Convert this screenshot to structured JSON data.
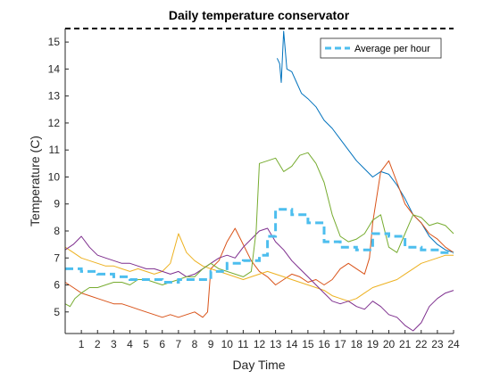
{
  "chart_data": {
    "type": "line",
    "title": "Daily temperature conservator",
    "xlabel": "Day Time",
    "ylabel": "Temperature (C)",
    "xlim": [
      0,
      24
    ],
    "ylim": [
      4.2,
      15.5
    ],
    "xticks": [
      1,
      2,
      3,
      4,
      5,
      6,
      7,
      8,
      9,
      10,
      11,
      12,
      13,
      14,
      15,
      16,
      17,
      18,
      19,
      20,
      21,
      22,
      23,
      24
    ],
    "yticks": [
      5,
      6,
      7,
      8,
      9,
      10,
      11,
      12,
      13,
      14,
      15
    ],
    "grid": false,
    "legend": {
      "placement": "top-right",
      "entries": [
        "Average per hour"
      ]
    },
    "reference_line": {
      "y": 15.5,
      "style": "dashed",
      "color": "#000000"
    },
    "series": [
      {
        "color": "#0072BD",
        "points": [
          [
            13.1,
            14.4
          ],
          [
            13.25,
            14.2
          ],
          [
            13.35,
            13.5
          ],
          [
            13.5,
            15.4
          ],
          [
            13.7,
            14.0
          ],
          [
            14.0,
            13.9
          ],
          [
            14.3,
            13.5
          ],
          [
            14.6,
            13.1
          ],
          [
            15.0,
            12.9
          ],
          [
            15.5,
            12.6
          ],
          [
            16.0,
            12.1
          ],
          [
            16.5,
            11.8
          ],
          [
            17.0,
            11.4
          ],
          [
            17.5,
            11.0
          ],
          [
            18.0,
            10.6
          ],
          [
            18.5,
            10.3
          ],
          [
            19.0,
            10.0
          ],
          [
            19.5,
            10.2
          ],
          [
            20.0,
            10.1
          ],
          [
            20.5,
            9.7
          ],
          [
            21.0,
            9.2
          ],
          [
            21.5,
            8.6
          ],
          [
            22.0,
            8.3
          ],
          [
            22.5,
            7.8
          ],
          [
            23.0,
            7.5
          ],
          [
            23.5,
            7.3
          ],
          [
            24.0,
            7.2
          ]
        ]
      },
      {
        "color": "#D95319",
        "points": [
          [
            0.0,
            6.1
          ],
          [
            0.5,
            5.9
          ],
          [
            1.0,
            5.7
          ],
          [
            1.5,
            5.6
          ],
          [
            2.0,
            5.5
          ],
          [
            2.5,
            5.4
          ],
          [
            3.0,
            5.3
          ],
          [
            3.5,
            5.3
          ],
          [
            4.0,
            5.2
          ],
          [
            4.5,
            5.1
          ],
          [
            5.0,
            5.0
          ],
          [
            5.5,
            4.9
          ],
          [
            6.0,
            4.8
          ],
          [
            6.5,
            4.9
          ],
          [
            7.0,
            4.8
          ],
          [
            7.5,
            4.9
          ],
          [
            8.0,
            5.0
          ],
          [
            8.5,
            4.8
          ],
          [
            8.8,
            5.0
          ],
          [
            9.0,
            6.6
          ],
          [
            9.5,
            6.9
          ],
          [
            10.0,
            7.6
          ],
          [
            10.5,
            8.1
          ],
          [
            11.0,
            7.5
          ],
          [
            11.5,
            6.9
          ],
          [
            12.0,
            6.5
          ],
          [
            12.5,
            6.3
          ],
          [
            13.0,
            6.0
          ],
          [
            13.5,
            6.2
          ],
          [
            14.0,
            6.4
          ],
          [
            14.5,
            6.3
          ],
          [
            15.0,
            6.1
          ],
          [
            15.5,
            6.2
          ],
          [
            16.0,
            6.0
          ],
          [
            16.5,
            6.2
          ],
          [
            17.0,
            6.6
          ],
          [
            17.5,
            6.8
          ],
          [
            18.0,
            6.6
          ],
          [
            18.5,
            6.4
          ],
          [
            18.8,
            7.0
          ],
          [
            19.0,
            8.3
          ],
          [
            19.5,
            10.2
          ],
          [
            20.0,
            10.6
          ],
          [
            20.5,
            9.8
          ],
          [
            21.0,
            9.0
          ],
          [
            21.5,
            8.6
          ],
          [
            22.0,
            8.3
          ],
          [
            22.5,
            7.9
          ],
          [
            23.0,
            7.7
          ],
          [
            23.5,
            7.4
          ],
          [
            24.0,
            7.2
          ]
        ]
      },
      {
        "color": "#EDB120",
        "points": [
          [
            0.0,
            7.4
          ],
          [
            0.5,
            7.2
          ],
          [
            1.0,
            7.0
          ],
          [
            1.5,
            6.9
          ],
          [
            2.0,
            6.8
          ],
          [
            2.5,
            6.7
          ],
          [
            3.0,
            6.7
          ],
          [
            3.5,
            6.6
          ],
          [
            4.0,
            6.5
          ],
          [
            4.5,
            6.6
          ],
          [
            5.0,
            6.5
          ],
          [
            5.5,
            6.4
          ],
          [
            6.0,
            6.5
          ],
          [
            6.5,
            6.8
          ],
          [
            7.0,
            7.9
          ],
          [
            7.5,
            7.2
          ],
          [
            8.0,
            6.9
          ],
          [
            8.5,
            6.7
          ],
          [
            9.0,
            6.6
          ],
          [
            9.5,
            6.5
          ],
          [
            10.0,
            6.4
          ],
          [
            10.5,
            6.3
          ],
          [
            11.0,
            6.2
          ],
          [
            11.5,
            6.3
          ],
          [
            12.0,
            6.4
          ],
          [
            12.5,
            6.5
          ],
          [
            13.0,
            6.4
          ],
          [
            13.5,
            6.3
          ],
          [
            14.0,
            6.2
          ],
          [
            14.5,
            6.1
          ],
          [
            15.0,
            6.0
          ],
          [
            15.5,
            5.9
          ],
          [
            16.0,
            5.8
          ],
          [
            16.5,
            5.6
          ],
          [
            17.0,
            5.5
          ],
          [
            17.5,
            5.4
          ],
          [
            18.0,
            5.5
          ],
          [
            18.5,
            5.7
          ],
          [
            19.0,
            5.9
          ],
          [
            19.5,
            6.0
          ],
          [
            20.0,
            6.1
          ],
          [
            20.5,
            6.2
          ],
          [
            21.0,
            6.4
          ],
          [
            21.5,
            6.6
          ],
          [
            22.0,
            6.8
          ],
          [
            22.5,
            6.9
          ],
          [
            23.0,
            7.0
          ],
          [
            23.5,
            7.1
          ],
          [
            24.0,
            7.1
          ]
        ]
      },
      {
        "color": "#7E2F8E",
        "points": [
          [
            0.0,
            7.3
          ],
          [
            0.5,
            7.5
          ],
          [
            1.0,
            7.8
          ],
          [
            1.5,
            7.4
          ],
          [
            2.0,
            7.1
          ],
          [
            2.5,
            7.0
          ],
          [
            3.0,
            6.9
          ],
          [
            3.5,
            6.8
          ],
          [
            4.0,
            6.8
          ],
          [
            4.5,
            6.7
          ],
          [
            5.0,
            6.6
          ],
          [
            5.5,
            6.6
          ],
          [
            6.0,
            6.5
          ],
          [
            6.5,
            6.4
          ],
          [
            7.0,
            6.5
          ],
          [
            7.5,
            6.3
          ],
          [
            8.0,
            6.4
          ],
          [
            8.5,
            6.6
          ],
          [
            9.0,
            6.8
          ],
          [
            9.5,
            7.0
          ],
          [
            10.0,
            7.1
          ],
          [
            10.5,
            7.0
          ],
          [
            11.0,
            7.4
          ],
          [
            11.5,
            7.7
          ],
          [
            12.0,
            8.0
          ],
          [
            12.5,
            8.1
          ],
          [
            13.0,
            7.6
          ],
          [
            13.5,
            7.3
          ],
          [
            14.0,
            6.9
          ],
          [
            14.5,
            6.6
          ],
          [
            15.0,
            6.3
          ],
          [
            15.5,
            6.0
          ],
          [
            16.0,
            5.7
          ],
          [
            16.5,
            5.4
          ],
          [
            17.0,
            5.3
          ],
          [
            17.5,
            5.4
          ],
          [
            18.0,
            5.2
          ],
          [
            18.5,
            5.1
          ],
          [
            19.0,
            5.4
          ],
          [
            19.5,
            5.2
          ],
          [
            20.0,
            4.9
          ],
          [
            20.5,
            4.8
          ],
          [
            21.0,
            4.5
          ],
          [
            21.5,
            4.3
          ],
          [
            22.0,
            4.6
          ],
          [
            22.5,
            5.2
          ],
          [
            23.0,
            5.5
          ],
          [
            23.5,
            5.7
          ],
          [
            24.0,
            5.8
          ]
        ]
      },
      {
        "color": "#77AC30",
        "points": [
          [
            0.0,
            5.3
          ],
          [
            0.3,
            5.2
          ],
          [
            0.6,
            5.5
          ],
          [
            1.0,
            5.7
          ],
          [
            1.5,
            5.9
          ],
          [
            2.0,
            5.9
          ],
          [
            2.5,
            6.0
          ],
          [
            3.0,
            6.1
          ],
          [
            3.5,
            6.1
          ],
          [
            4.0,
            6.0
          ],
          [
            4.5,
            6.2
          ],
          [
            5.0,
            6.2
          ],
          [
            5.5,
            6.1
          ],
          [
            6.0,
            6.0
          ],
          [
            6.5,
            6.1
          ],
          [
            7.0,
            6.2
          ],
          [
            7.5,
            6.3
          ],
          [
            8.0,
            6.3
          ],
          [
            8.5,
            6.6
          ],
          [
            9.0,
            6.8
          ],
          [
            9.5,
            6.6
          ],
          [
            10.0,
            6.5
          ],
          [
            10.5,
            6.4
          ],
          [
            11.0,
            6.3
          ],
          [
            11.5,
            6.5
          ],
          [
            11.8,
            8.0
          ],
          [
            12.0,
            10.5
          ],
          [
            12.5,
            10.6
          ],
          [
            13.0,
            10.7
          ],
          [
            13.5,
            10.2
          ],
          [
            14.0,
            10.4
          ],
          [
            14.5,
            10.8
          ],
          [
            15.0,
            10.9
          ],
          [
            15.5,
            10.5
          ],
          [
            16.0,
            9.8
          ],
          [
            16.5,
            8.6
          ],
          [
            17.0,
            7.8
          ],
          [
            17.5,
            7.6
          ],
          [
            18.0,
            7.7
          ],
          [
            18.5,
            7.9
          ],
          [
            19.0,
            8.4
          ],
          [
            19.5,
            8.6
          ],
          [
            20.0,
            7.4
          ],
          [
            20.5,
            7.2
          ],
          [
            21.0,
            7.9
          ],
          [
            21.5,
            8.6
          ],
          [
            22.0,
            8.5
          ],
          [
            22.5,
            8.2
          ],
          [
            23.0,
            8.3
          ],
          [
            23.5,
            8.2
          ],
          [
            24.0,
            7.9
          ]
        ]
      }
    ],
    "average": {
      "name": "Average per hour",
      "color": "#4DBEEE",
      "style": "dashed",
      "points": [
        [
          0,
          6.6
        ],
        [
          1,
          6.5
        ],
        [
          2,
          6.4
        ],
        [
          3,
          6.3
        ],
        [
          4,
          6.2
        ],
        [
          5,
          6.2
        ],
        [
          6,
          6.1
        ],
        [
          7,
          6.2
        ],
        [
          8,
          6.2
        ],
        [
          9,
          6.5
        ],
        [
          10,
          6.8
        ],
        [
          11,
          6.9
        ],
        [
          12,
          7.1
        ],
        [
          12.5,
          7.8
        ],
        [
          13,
          8.8
        ],
        [
          14,
          8.6
        ],
        [
          15,
          8.3
        ],
        [
          16,
          7.6
        ],
        [
          17,
          7.4
        ],
        [
          18,
          7.3
        ],
        [
          19,
          7.9
        ],
        [
          20,
          7.8
        ],
        [
          21,
          7.4
        ],
        [
          22,
          7.3
        ],
        [
          23,
          7.2
        ],
        [
          24,
          7.2
        ]
      ]
    }
  }
}
